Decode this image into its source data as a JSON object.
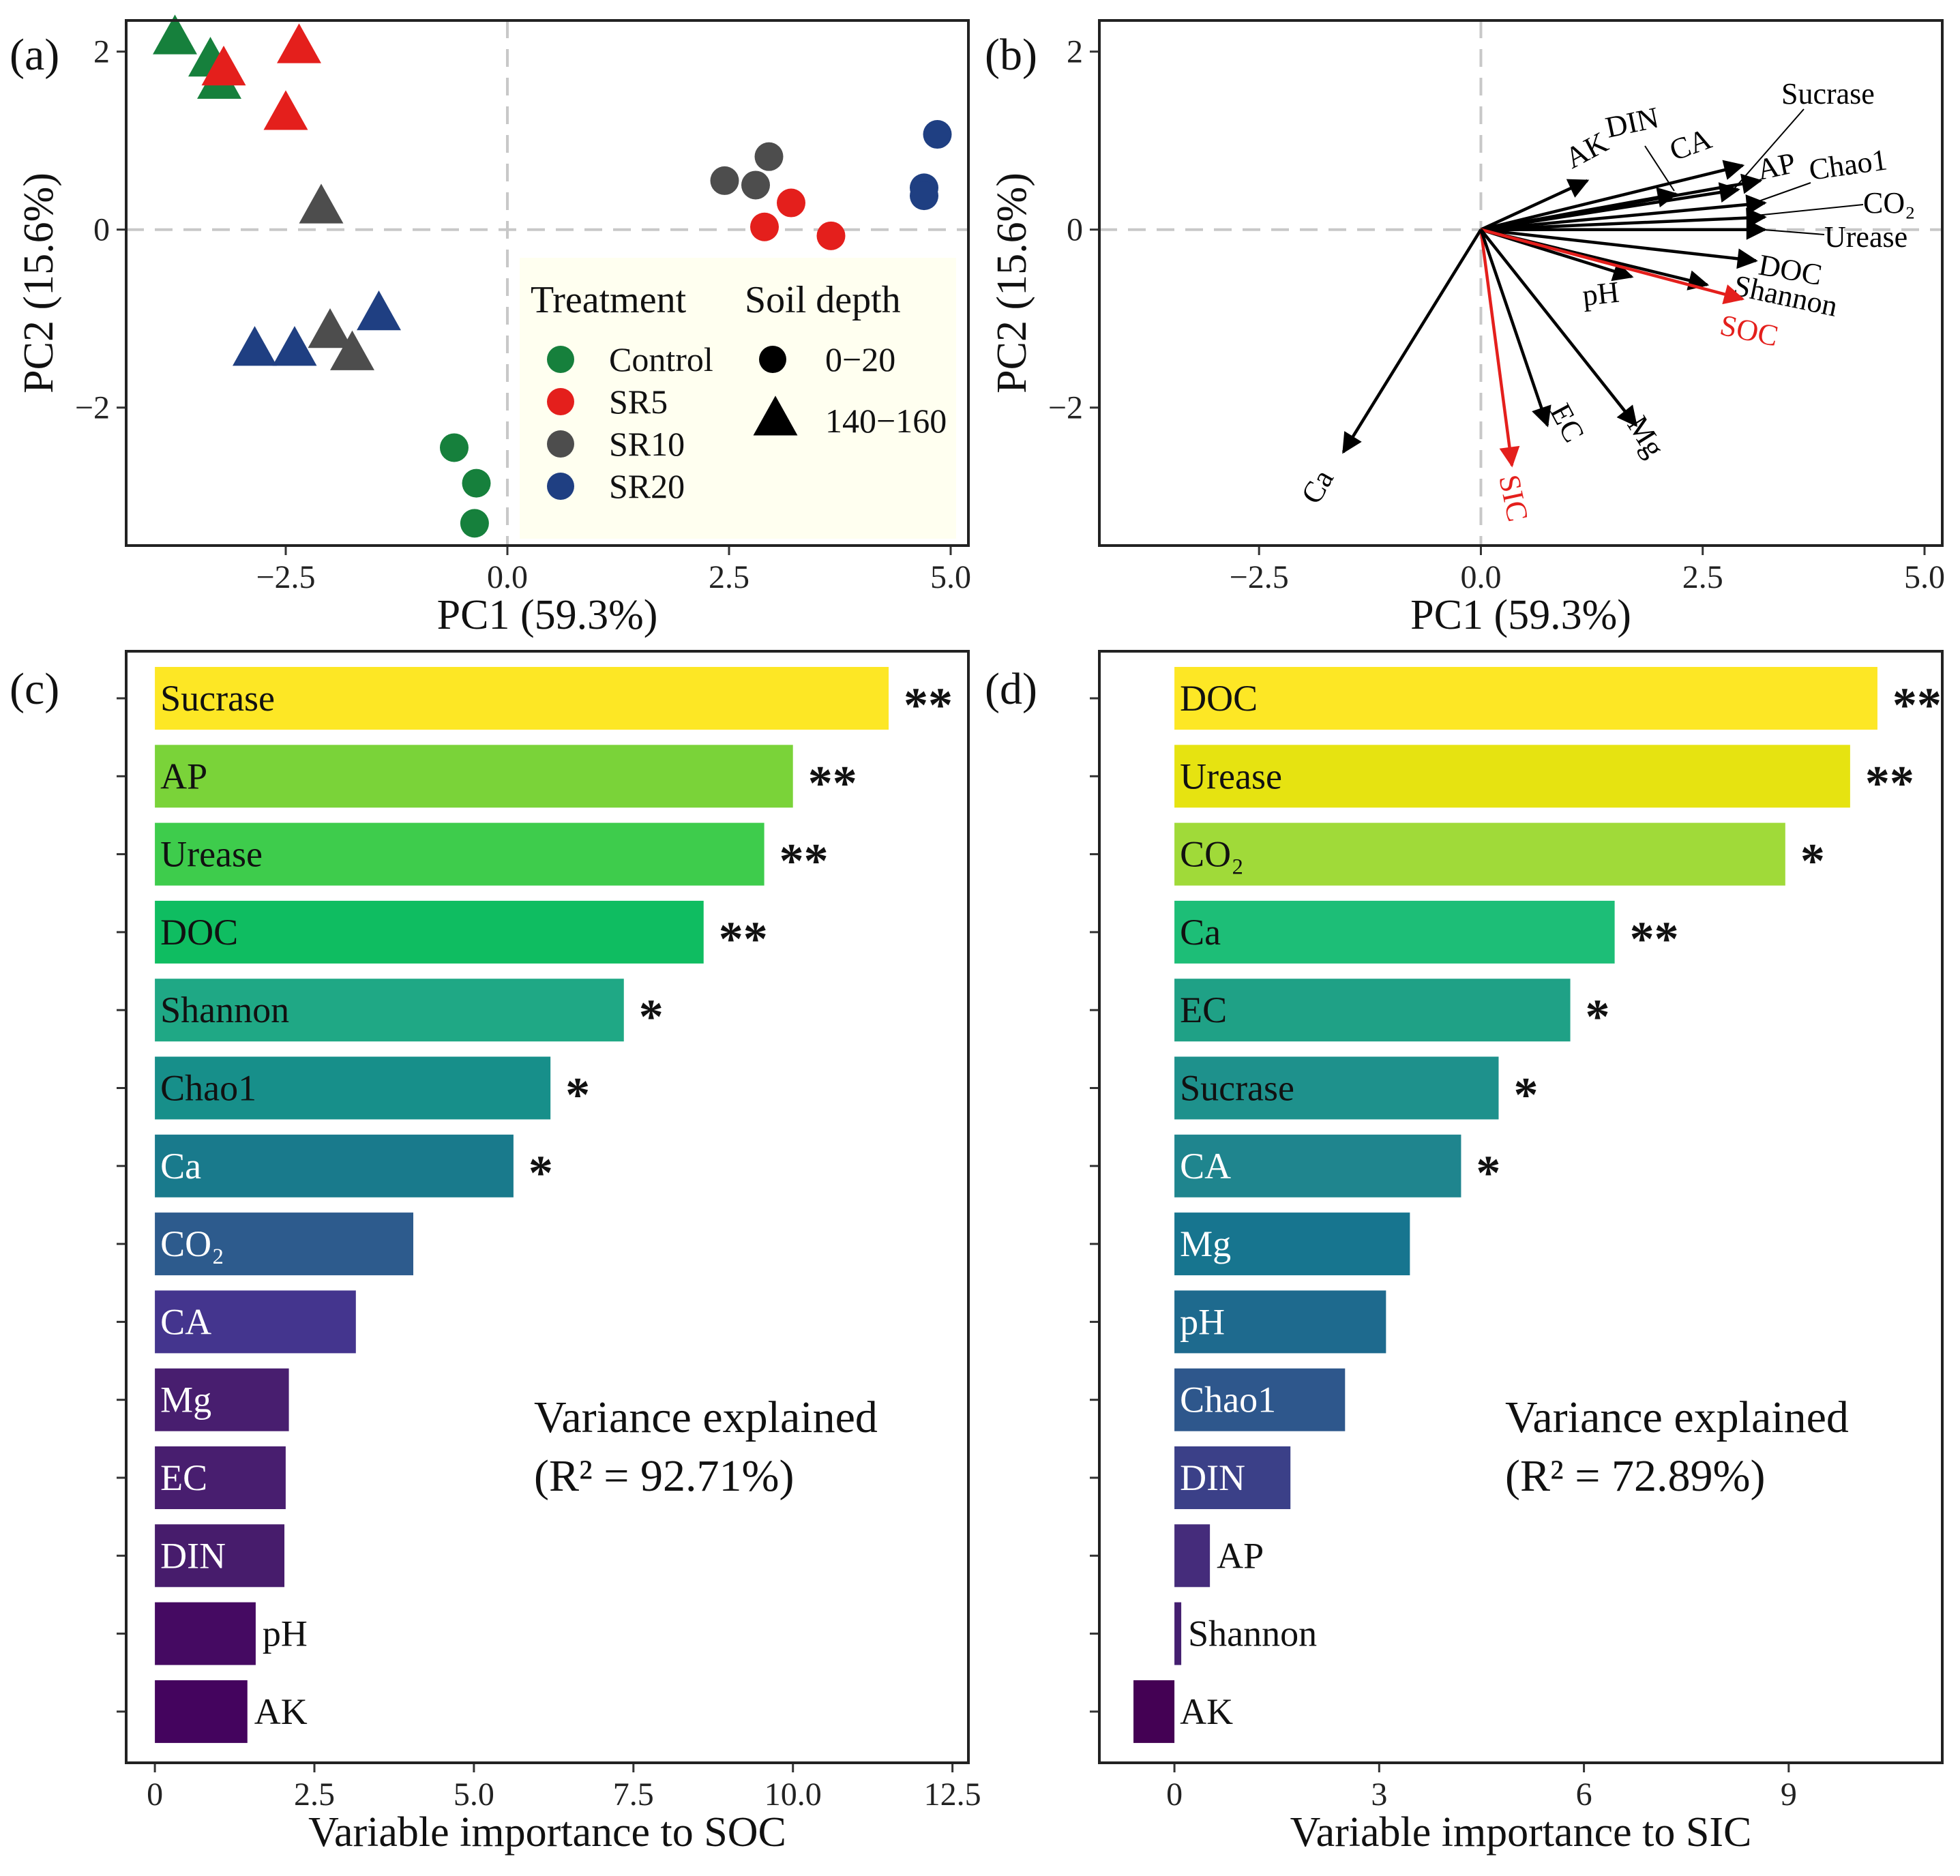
{
  "chart_data": [
    {
      "panel": "(a)",
      "type": "scatter",
      "xlabel": "PC1 (59.3%)",
      "ylabel": "PC2 (15.6%)",
      "xlim": [
        -4.3,
        5.2
      ],
      "ylim": [
        -3.55,
        2.35
      ],
      "xticks": [
        -2.5,
        0.0,
        2.5,
        5.0
      ],
      "xtick_labels": [
        "−2.5",
        "0.0",
        "2.5",
        "5.0"
      ],
      "yticks": [
        -2,
        0,
        2
      ],
      "ytick_labels": [
        "−2",
        "0",
        "2"
      ],
      "reference_lines": "dashed at x = 0 and y = 0",
      "legend": {
        "position": "lower-right",
        "treatment_title": "Treatment",
        "depth_title": "Soil depth",
        "treatments": [
          {
            "label": "Control",
            "color": "#16803c"
          },
          {
            "label": "SR5",
            "color": "#e41f1c"
          },
          {
            "label": "SR10",
            "color": "#4d4d4d"
          },
          {
            "label": "SR20",
            "color": "#1f3f82"
          }
        ],
        "depths": [
          {
            "label": "0−20",
            "shape": "circle"
          },
          {
            "label": "140−160",
            "shape": "triangle"
          }
        ]
      },
      "points": [
        {
          "x": -3.75,
          "y": 2.15,
          "group": "Control",
          "depth": "140−160"
        },
        {
          "x": -3.35,
          "y": 1.9,
          "group": "Control",
          "depth": "140−160"
        },
        {
          "x": -3.25,
          "y": 1.65,
          "group": "Control",
          "depth": "140−160"
        },
        {
          "x": -0.6,
          "y": -2.45,
          "group": "Control",
          "depth": "0−20"
        },
        {
          "x": -0.35,
          "y": -2.85,
          "group": "Control",
          "depth": "0−20"
        },
        {
          "x": -0.37,
          "y": -3.3,
          "group": "Control",
          "depth": "0−20"
        },
        {
          "x": -2.35,
          "y": 2.05,
          "group": "SR5",
          "depth": "140−160"
        },
        {
          "x": -3.2,
          "y": 1.8,
          "group": "SR5",
          "depth": "140−160"
        },
        {
          "x": -2.5,
          "y": 1.3,
          "group": "SR5",
          "depth": "140−160"
        },
        {
          "x": 3.2,
          "y": 0.3,
          "group": "SR5",
          "depth": "0−20"
        },
        {
          "x": 2.9,
          "y": 0.03,
          "group": "SR5",
          "depth": "0−20"
        },
        {
          "x": 3.65,
          "y": -0.07,
          "group": "SR5",
          "depth": "0−20"
        },
        {
          "x": -2.1,
          "y": 0.25,
          "group": "SR10",
          "depth": "140−160"
        },
        {
          "x": -2.0,
          "y": -1.15,
          "group": "SR10",
          "depth": "140−160"
        },
        {
          "x": -1.75,
          "y": -1.4,
          "group": "SR10",
          "depth": "140−160"
        },
        {
          "x": 2.45,
          "y": 0.55,
          "group": "SR10",
          "depth": "0−20"
        },
        {
          "x": 2.8,
          "y": 0.5,
          "group": "SR10",
          "depth": "0−20"
        },
        {
          "x": 2.95,
          "y": 0.82,
          "group": "SR10",
          "depth": "0−20"
        },
        {
          "x": -2.85,
          "y": -1.35,
          "group": "SR20",
          "depth": "140−160"
        },
        {
          "x": -2.4,
          "y": -1.35,
          "group": "SR20",
          "depth": "140−160"
        },
        {
          "x": -1.45,
          "y": -0.95,
          "group": "SR20",
          "depth": "140−160"
        },
        {
          "x": 4.85,
          "y": 1.07,
          "group": "SR20",
          "depth": "0−20"
        },
        {
          "x": 4.7,
          "y": 0.47,
          "group": "SR20",
          "depth": "0−20"
        },
        {
          "x": 4.7,
          "y": 0.38,
          "group": "SR20",
          "depth": "0−20"
        }
      ]
    },
    {
      "panel": "(b)",
      "type": "biplot",
      "xlabel": "PC1 (59.3%)",
      "ylabel": "PC2 (15.6%)",
      "xlim": [
        -4.3,
        5.2
      ],
      "ylim": [
        -3.55,
        2.35
      ],
      "xticks": [
        -2.5,
        0.0,
        2.5,
        5.0
      ],
      "xtick_labels": [
        "−2.5",
        "0.0",
        "2.5",
        "5.0"
      ],
      "yticks": [
        -2,
        0,
        2
      ],
      "ytick_labels": [
        "−2",
        "0",
        "2"
      ],
      "vectors": [
        {
          "label": "AK",
          "x": 1.2,
          "y": 0.55,
          "color": "#000000"
        },
        {
          "label": "DIN",
          "x": 2.2,
          "y": 0.4,
          "color": "#000000"
        },
        {
          "label": "CA",
          "x": 2.95,
          "y": 0.72,
          "color": "#000000"
        },
        {
          "label": "Sucrase",
          "x": 2.9,
          "y": 0.45,
          "color": "#000000"
        },
        {
          "label": "AP",
          "x": 3.15,
          "y": 0.55,
          "color": "#000000"
        },
        {
          "label": "Chao1",
          "x": 3.2,
          "y": 0.3,
          "color": "#000000"
        },
        {
          "label": "CO₂",
          "x": 3.2,
          "y": 0.14,
          "color": "#000000"
        },
        {
          "label": "Urease",
          "x": 3.2,
          "y": 0.0,
          "color": "#000000"
        },
        {
          "label": "DOC",
          "x": 3.1,
          "y": -0.35,
          "color": "#000000"
        },
        {
          "label": "pH",
          "x": 1.7,
          "y": -0.53,
          "color": "#000000"
        },
        {
          "label": "Shannon",
          "x": 2.55,
          "y": -0.62,
          "color": "#000000"
        },
        {
          "label": "SOC",
          "x": 2.95,
          "y": -0.78,
          "color": "#e41f1c"
        },
        {
          "label": "SIC",
          "x": 0.35,
          "y": -2.65,
          "color": "#e41f1c"
        },
        {
          "label": "EC",
          "x": 0.75,
          "y": -2.2,
          "color": "#000000"
        },
        {
          "label": "Mg",
          "x": 1.75,
          "y": -2.2,
          "color": "#000000"
        },
        {
          "label": "Ca",
          "x": -1.55,
          "y": -2.5,
          "color": "#000000"
        }
      ]
    },
    {
      "panel": "(c)",
      "type": "bar",
      "orientation": "horizontal",
      "xlabel": "Variable importance to SOC",
      "xlim": [
        -0.45,
        12.75
      ],
      "xticks": [
        0,
        2.5,
        5,
        7.5,
        10,
        12.5
      ],
      "xtick_labels": [
        "0",
        "2.5",
        "5.0",
        "7.5",
        "10.0",
        "12.5"
      ],
      "annotation_line1": "Variance explained",
      "annotation_line2": "(R² = 92.71%)",
      "bars": [
        {
          "label": "Sucrase",
          "value": 11.5,
          "sig": "**",
          "color": "#fde725"
        },
        {
          "label": "AP",
          "value": 10.0,
          "sig": "**",
          "color": "#7ad339"
        },
        {
          "label": "Urease",
          "value": 9.55,
          "sig": "**",
          "color": "#3ecc4c"
        },
        {
          "label": "DOC",
          "value": 8.6,
          "sig": "**",
          "color": "#0fbd61"
        },
        {
          "label": "Shannon",
          "value": 7.35,
          "sig": "*",
          "color": "#1fa885"
        },
        {
          "label": "Chao1",
          "value": 6.2,
          "sig": "*",
          "color": "#178f8a"
        },
        {
          "label": "Ca",
          "value": 5.62,
          "sig": "*",
          "color": "#197a8c"
        },
        {
          "label": "CO₂",
          "value": 4.05,
          "sig": "",
          "color": "#2d5b8d"
        },
        {
          "label": "CA",
          "value": 3.15,
          "sig": "",
          "color": "#44358e"
        },
        {
          "label": "Mg",
          "value": 2.1,
          "sig": "",
          "color": "#481e6f"
        },
        {
          "label": "EC",
          "value": 2.05,
          "sig": "",
          "color": "#481e6f"
        },
        {
          "label": "DIN",
          "value": 2.03,
          "sig": "",
          "color": "#471c6c"
        },
        {
          "label": "pH",
          "value": 1.58,
          "sig": "",
          "color": "#450a62"
        },
        {
          "label": "AK",
          "value": 1.45,
          "sig": "",
          "color": "#44045e"
        }
      ]
    },
    {
      "panel": "(d)",
      "type": "bar",
      "orientation": "horizontal",
      "xlabel": "Variable importance to SIC",
      "xlim": [
        -1.1,
        11.25
      ],
      "xticks": [
        0,
        3,
        6,
        9
      ],
      "xtick_labels": [
        "0",
        "3",
        "6",
        "9"
      ],
      "annotation_line1": "Variance explained",
      "annotation_line2": "(R² = 72.89%)",
      "bars": [
        {
          "label": "DOC",
          "value": 10.3,
          "sig": "**",
          "color": "#fde725"
        },
        {
          "label": "Urease",
          "value": 9.9,
          "sig": "**",
          "color": "#e6e311"
        },
        {
          "label": "CO₂",
          "value": 8.95,
          "sig": "*",
          "color": "#a0da39"
        },
        {
          "label": "Ca",
          "value": 6.45,
          "sig": "**",
          "color": "#1dbe77"
        },
        {
          "label": "EC",
          "value": 5.8,
          "sig": "*",
          "color": "#1fa186"
        },
        {
          "label": "Sucrase",
          "value": 4.75,
          "sig": "*",
          "color": "#1e918c"
        },
        {
          "label": "CA",
          "value": 4.2,
          "sig": "*",
          "color": "#1f858e"
        },
        {
          "label": "Mg",
          "value": 3.45,
          "sig": "",
          "color": "#17758f"
        },
        {
          "label": "pH",
          "value": 3.1,
          "sig": "",
          "color": "#1e6a8e"
        },
        {
          "label": "Chao1",
          "value": 2.5,
          "sig": "",
          "color": "#2e578c"
        },
        {
          "label": "DIN",
          "value": 1.7,
          "sig": "",
          "color": "#3b4088"
        },
        {
          "label": "AP",
          "value": 0.52,
          "sig": "",
          "color": "#452c7b"
        },
        {
          "label": "Shannon",
          "value": 0.1,
          "sig": "",
          "color": "#441f70"
        },
        {
          "label": "AK",
          "value": -0.6,
          "sig": "",
          "color": "#440154"
        }
      ]
    }
  ]
}
